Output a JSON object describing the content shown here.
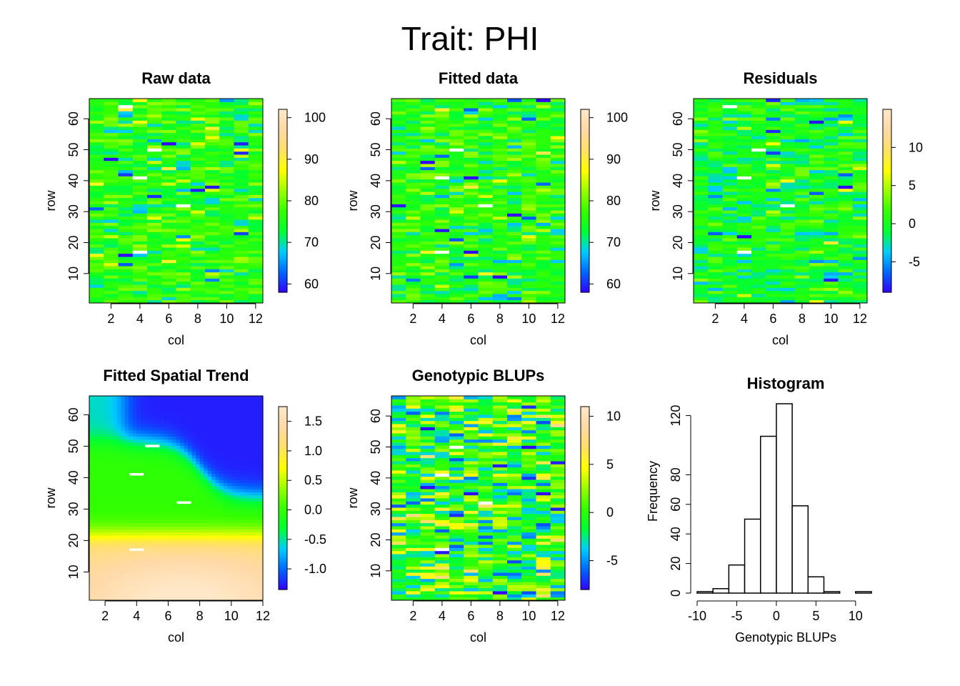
{
  "title": "Trait: PHI",
  "colors": {
    "heat_palette": [
      "#3300ff",
      "#0066ff",
      "#00ccff",
      "#00ff33",
      "#33ff00",
      "#99ff00",
      "#ffff00",
      "#ffe066",
      "#ffd9a6",
      "#ffe8c8"
    ],
    "missing_plot": "#ffffff",
    "histogram_fill": "#ffffff",
    "axis": "#000000"
  },
  "chart_data": [
    {
      "type": "heatmap",
      "title": "Raw data",
      "xlabel": "col",
      "ylabel": "row",
      "x_ticks": [
        2,
        4,
        6,
        8,
        10,
        12
      ],
      "y_ticks": [
        10,
        20,
        30,
        40,
        50,
        60
      ],
      "xlim": [
        0.5,
        12.5
      ],
      "ylim": [
        0.5,
        66.5
      ],
      "grid_cols": 12,
      "grid_rows": 66,
      "value_range": [
        58,
        102
      ],
      "colorbar_ticks": [
        60,
        70,
        80,
        90,
        100
      ],
      "typical_value": 76,
      "missing_plots": [
        [
          3,
          64
        ],
        [
          5,
          50
        ],
        [
          4,
          41
        ],
        [
          7,
          32
        ],
        [
          4,
          17
        ]
      ]
    },
    {
      "type": "heatmap",
      "title": "Fitted data",
      "xlabel": "col",
      "ylabel": "row",
      "x_ticks": [
        2,
        4,
        6,
        8,
        10,
        12
      ],
      "y_ticks": [
        10,
        20,
        30,
        40,
        50,
        60
      ],
      "xlim": [
        0.5,
        12.5
      ],
      "ylim": [
        0.5,
        66.5
      ],
      "grid_cols": 12,
      "grid_rows": 66,
      "value_range": [
        58,
        102
      ],
      "colorbar_ticks": [
        60,
        70,
        80,
        90,
        100
      ],
      "typical_value": 76,
      "missing_plots": [
        [
          5,
          50
        ],
        [
          4,
          41
        ],
        [
          7,
          32
        ],
        [
          4,
          17
        ]
      ]
    },
    {
      "type": "heatmap",
      "title": "Residuals",
      "xlabel": "col",
      "ylabel": "row",
      "x_ticks": [
        2,
        4,
        6,
        8,
        10,
        12
      ],
      "y_ticks": [
        10,
        20,
        30,
        40,
        50,
        60
      ],
      "xlim": [
        0.5,
        12.5
      ],
      "ylim": [
        0.5,
        66.5
      ],
      "grid_cols": 12,
      "grid_rows": 66,
      "value_range": [
        -9,
        15
      ],
      "colorbar_ticks": [
        -5,
        0,
        5,
        10
      ],
      "typical_value": 0,
      "missing_plots": [
        [
          3,
          64
        ],
        [
          5,
          50
        ],
        [
          4,
          41
        ],
        [
          7,
          32
        ],
        [
          4,
          17
        ]
      ]
    },
    {
      "type": "heatmap",
      "title": "Fitted Spatial Trend",
      "xlabel": "col",
      "ylabel": "row",
      "x_ticks": [
        2,
        4,
        6,
        8,
        10,
        12
      ],
      "y_ticks": [
        10,
        20,
        30,
        40,
        50,
        60
      ],
      "xlim": [
        1,
        12
      ],
      "ylim": [
        1,
        66
      ],
      "value_range": [
        -1.35,
        1.75
      ],
      "colorbar_ticks": [
        -1.0,
        -0.5,
        0.0,
        0.5,
        1.0,
        1.5
      ],
      "colorbar_tick_labels": [
        "-1.0",
        "-0.5",
        "0.0",
        "0.5",
        "1.0",
        "1.5"
      ],
      "smooth": true,
      "missing_plots": [
        [
          5,
          50
        ],
        [
          4,
          41
        ],
        [
          7,
          32
        ],
        [
          4,
          17
        ]
      ]
    },
    {
      "type": "heatmap",
      "title": "Genotypic BLUPs",
      "xlabel": "col",
      "ylabel": "row",
      "x_ticks": [
        2,
        4,
        6,
        8,
        10,
        12
      ],
      "y_ticks": [
        10,
        20,
        30,
        40,
        50,
        60
      ],
      "xlim": [
        0.5,
        12.5
      ],
      "ylim": [
        0.5,
        66.5
      ],
      "grid_cols": 12,
      "grid_rows": 66,
      "value_range": [
        -8,
        11
      ],
      "colorbar_ticks": [
        -5,
        0,
        5,
        10
      ],
      "typical_value": 0,
      "missing_plots": [
        [
          5,
          50
        ],
        [
          4,
          41
        ],
        [
          7,
          32
        ],
        [
          4,
          17
        ]
      ]
    },
    {
      "type": "bar",
      "title": "Histogram",
      "xlabel": "Genotypic BLUPs",
      "ylabel": "Frequency",
      "bin_edges": [
        -10,
        -8,
        -6,
        -4,
        -2,
        0,
        2,
        4,
        6,
        8,
        10,
        12
      ],
      "values": [
        1,
        3,
        19,
        50,
        106,
        128,
        59,
        11,
        1,
        0,
        1
      ],
      "x_ticks": [
        -10,
        -5,
        0,
        5,
        10
      ],
      "y_ticks": [
        0,
        20,
        40,
        60,
        80,
        120
      ],
      "xlim": [
        -10,
        12
      ],
      "ylim": [
        0,
        128
      ]
    }
  ]
}
